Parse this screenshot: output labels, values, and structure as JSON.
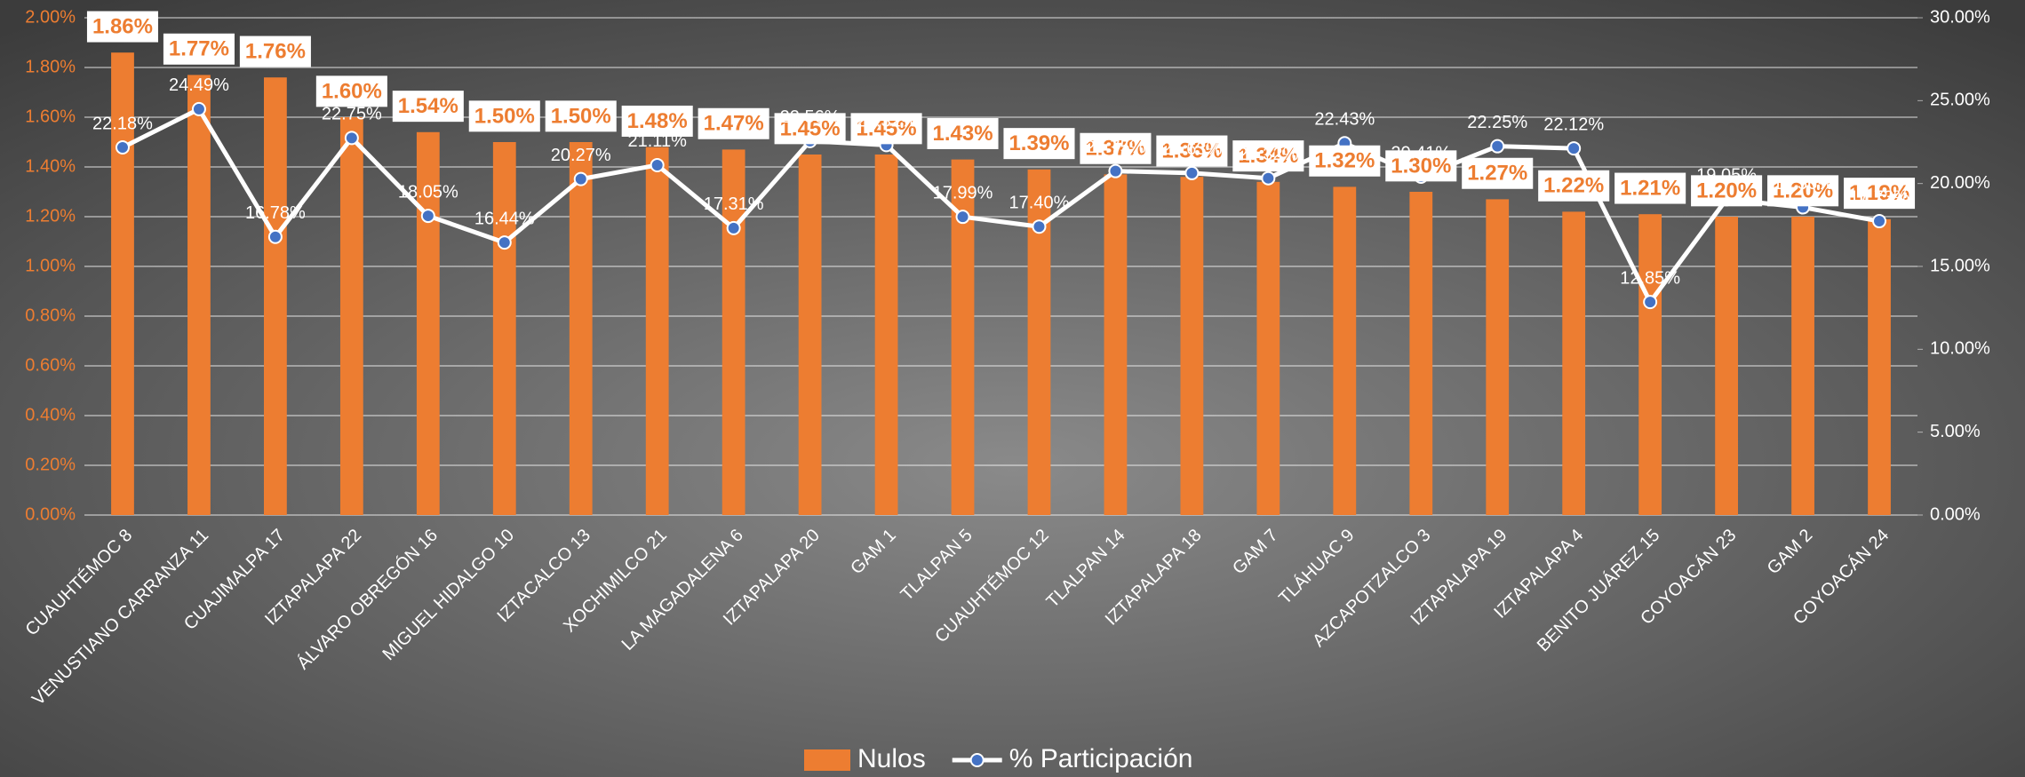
{
  "chart_data": {
    "type": "bar",
    "categories": [
      "CUAUHTÉMOC 8",
      "VENUSTIANO CARRANZA 11",
      "CUAJIMALPA 17",
      "IZTAPALAPA 22",
      "ÁLVARO OBREGÓN 16",
      "MIGUEL HIDALGO 10",
      "IZTACALCO 13",
      "XOCHIMILCO 21",
      "LA MAGADALENA 6",
      "IZTAPALAPA 20",
      "GAM 1",
      "TLALPAN 5",
      "CUAUHTÉMOC 12",
      "TLALPAN 14",
      "IZTAPALAPA 18",
      "GAM 7",
      "TLÁHUAC 9",
      "AZCAPOTZALCO 3",
      "IZTAPALAPA 19",
      "IZTAPALAPA 4",
      "BENITO JUÁREZ 15",
      "COYOACÁN 23",
      "GAM 2",
      "COYOACÁN 24"
    ],
    "series": [
      {
        "name": "Nulos",
        "type": "bar",
        "color": "#ed7d31",
        "values": [
          1.86,
          1.77,
          1.76,
          1.6,
          1.54,
          1.5,
          1.5,
          1.48,
          1.47,
          1.45,
          1.45,
          1.43,
          1.39,
          1.37,
          1.36,
          1.34,
          1.32,
          1.3,
          1.27,
          1.22,
          1.21,
          1.2,
          1.2,
          1.19
        ],
        "value_labels": [
          "1.86%",
          "1.77%",
          "1.76%",
          "1.60%",
          "1.54%",
          "1.50%",
          "1.50%",
          "1.48%",
          "1.47%",
          "1.45%",
          "1.45%",
          "1.43%",
          "1.39%",
          "1.37%",
          "1.36%",
          "1.34%",
          "1.32%",
          "1.30%",
          "1.27%",
          "1.22%",
          "1.21%",
          "1.20%",
          "1.20%",
          "1.19%"
        ]
      },
      {
        "name": "% Participación",
        "type": "line",
        "axis": "y2",
        "color": "#ffffff",
        "marker_color": "#4472c4",
        "values": [
          22.18,
          24.49,
          16.78,
          22.75,
          18.05,
          16.44,
          20.27,
          21.11,
          17.31,
          22.56,
          22.32,
          17.99,
          17.4,
          20.75,
          20.63,
          20.32,
          22.43,
          20.41,
          22.25,
          22.12,
          12.85,
          19.05,
          18.56,
          17.73
        ],
        "value_labels": [
          "22.18%",
          "24.49%",
          "16.78%",
          "22.75%",
          "18.05%",
          "16.44%",
          "20.27%",
          "21.11%",
          "17.31%",
          "22.56%",
          "22.32%",
          "17.99%",
          "17.40%",
          "20.75%",
          "20.63%",
          "20.32%",
          "22.43%",
          "20.41%",
          "22.25%",
          "22.12%",
          "12.85%",
          "19.05%",
          "18.56%",
          "17.73%"
        ]
      }
    ],
    "ylim": [
      0,
      2
    ],
    "yticks": [
      {
        "value": 0,
        "label": "0.00%"
      },
      {
        "value": 0.2,
        "label": "0.20%"
      },
      {
        "value": 0.4,
        "label": "0.40%"
      },
      {
        "value": 0.6,
        "label": "0.60%"
      },
      {
        "value": 0.8,
        "label": "0.80%"
      },
      {
        "value": 1,
        "label": "1.00%"
      },
      {
        "value": 1.2,
        "label": "1.20%"
      },
      {
        "value": 1.4,
        "label": "1.40%"
      },
      {
        "value": 1.6,
        "label": "1.60%"
      },
      {
        "value": 1.8,
        "label": "1.80%"
      },
      {
        "value": 2,
        "label": "2.00%"
      }
    ],
    "y2lim": [
      0,
      30
    ],
    "y2ticks": [
      {
        "value": 0,
        "label": "0.00%"
      },
      {
        "value": 5,
        "label": "5.00%"
      },
      {
        "value": 10,
        "label": "10.00%"
      },
      {
        "value": 15,
        "label": "15.00%"
      },
      {
        "value": 20,
        "label": "20.00%"
      },
      {
        "value": 25,
        "label": "25.00%"
      },
      {
        "value": 30,
        "label": "30.00%"
      }
    ],
    "grid": true,
    "legend": "bottom"
  }
}
